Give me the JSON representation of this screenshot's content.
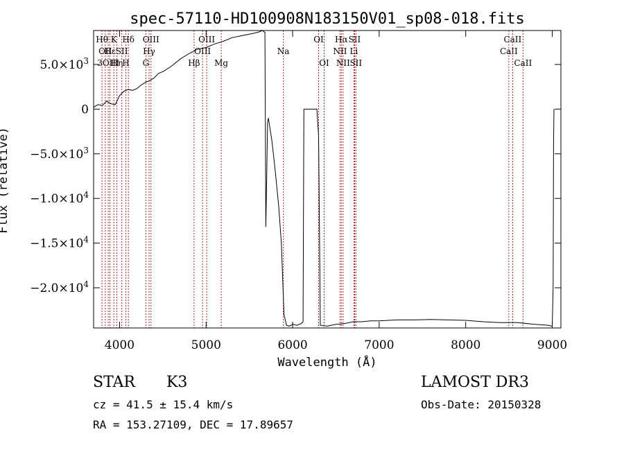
{
  "chart_data": {
    "type": "line",
    "title": "spec-57110-HD100908N183150V01_sp08-018.fits",
    "xlabel": "Wavelength (Å)",
    "ylabel": "Flux (relative)",
    "xlim": [
      3700,
      9100
    ],
    "ylim": [
      -24500,
      8800
    ],
    "x_ticks": [
      {
        "value": 4000,
        "label": "4000"
      },
      {
        "value": 5000,
        "label": "5000"
      },
      {
        "value": 6000,
        "label": "6000"
      },
      {
        "value": 7000,
        "label": "7000"
      },
      {
        "value": 8000,
        "label": "8000"
      },
      {
        "value": 9000,
        "label": "9000"
      }
    ],
    "y_ticks": [
      {
        "value": 5000,
        "mant": "5.0×10",
        "exp": "3"
      },
      {
        "value": 0,
        "mant": "0",
        "exp": ""
      },
      {
        "value": -5000,
        "mant": "−5.0×10",
        "exp": "3"
      },
      {
        "value": -10000,
        "mant": "−1.0×10",
        "exp": "4"
      },
      {
        "value": -15000,
        "mant": "−1.5×10",
        "exp": "4"
      },
      {
        "value": -20000,
        "mant": "−2.0×10",
        "exp": "4"
      }
    ],
    "series": [
      {
        "x": [
          3700,
          3750,
          3800,
          3850,
          3900,
          3950,
          4000,
          4050,
          4100,
          4150,
          4200,
          4250,
          4300,
          4350,
          4400,
          4450,
          4500,
          4600,
          4700,
          4800,
          4900,
          5000,
          5100,
          5200,
          5300,
          5400,
          5500,
          5600,
          5650,
          5680,
          5690,
          5700,
          5710,
          5720,
          5760,
          5800,
          5840,
          5870,
          5900,
          5930,
          5960,
          6000,
          6050,
          6100,
          6120,
          6130,
          6200,
          6280,
          6300,
          6320,
          6400,
          6500,
          6600,
          6700,
          6800,
          6900,
          7000,
          7200,
          7400,
          7600,
          7800,
          8000,
          8200,
          8400,
          8600,
          8800,
          8950,
          9000,
          9010,
          9015,
          9020
        ],
        "y": [
          200,
          500,
          400,
          900,
          600,
          500,
          1500,
          2000,
          2200,
          2100,
          2300,
          2700,
          3000,
          3200,
          3500,
          4000,
          4200,
          4800,
          5600,
          6200,
          6700,
          6900,
          7300,
          7600,
          8000,
          8200,
          8400,
          8600,
          8800,
          8600,
          -13200,
          -8000,
          -1500,
          -1000,
          -3500,
          -7000,
          -11000,
          -15000,
          -23000,
          -24200,
          -24300,
          -24100,
          -24200,
          -24000,
          -23800,
          0,
          0,
          0,
          -3000,
          -24200,
          -24300,
          -24100,
          -24000,
          -23800,
          -23800,
          -23700,
          -23700,
          -23600,
          -23600,
          -23550,
          -23600,
          -23650,
          -23800,
          -23900,
          -23900,
          -24100,
          -24200,
          -24300,
          -20000,
          -4000,
          0
        ]
      }
    ],
    "lines": [
      {
        "x": 3797,
        "label": "Hθ",
        "row": 0
      },
      {
        "x": 3835,
        "label": "OII",
        "row": 1
      },
      {
        "x": 3869,
        "label": "3OIII",
        "row": 2
      },
      {
        "x": 3889,
        "label": "Hε",
        "row": 1
      },
      {
        "x": 3934,
        "label": "K",
        "row": 0
      },
      {
        "x": 3968,
        "label": "Hη",
        "row": 2
      },
      {
        "x": 4026,
        "label": "SII",
        "row": 1
      },
      {
        "x": 4072,
        "label": "H",
        "row": 2
      },
      {
        "x": 4102,
        "label": "Hδ",
        "row": 0
      },
      {
        "x": 4304,
        "label": "G",
        "row": 2
      },
      {
        "x": 4341,
        "label": "Hγ",
        "row": 1
      },
      {
        "x": 4363,
        "label": "OIII",
        "row": 0
      },
      {
        "x": 4861,
        "label": "Hβ",
        "row": 2
      },
      {
        "x": 4959,
        "label": "OIII",
        "row": 1
      },
      {
        "x": 5007,
        "label": "OIII",
        "row": 0
      },
      {
        "x": 5175,
        "label": "Mg",
        "row": 2
      },
      {
        "x": 5892,
        "label": "Na",
        "row": 1
      },
      {
        "x": 6300,
        "label": "OI",
        "row": 0
      },
      {
        "x": 6364,
        "label": "OI",
        "row": 2
      },
      {
        "x": 6548,
        "label": "NII",
        "row": 1
      },
      {
        "x": 6563,
        "label": "Hα",
        "row": 0
      },
      {
        "x": 6583,
        "label": "NII",
        "row": 2
      },
      {
        "x": 6708,
        "label": "Li",
        "row": 1
      },
      {
        "x": 6716,
        "label": "SII",
        "row": 0
      },
      {
        "x": 6731,
        "label": "SII",
        "row": 2
      },
      {
        "x": 8498,
        "label": "CaII",
        "row": 1
      },
      {
        "x": 8542,
        "label": "CaII",
        "row": 0
      },
      {
        "x": 8662,
        "label": "CaII",
        "row": 2
      }
    ]
  },
  "info": {
    "object_type": "STAR",
    "subclass": "K3",
    "survey": "LAMOST DR3",
    "cz": "cz = 41.5 ± 15.4 km/s",
    "obs_date": "Obs-Date: 20150328",
    "coords": "RA = 153.27109, DEC =  17.89657"
  }
}
